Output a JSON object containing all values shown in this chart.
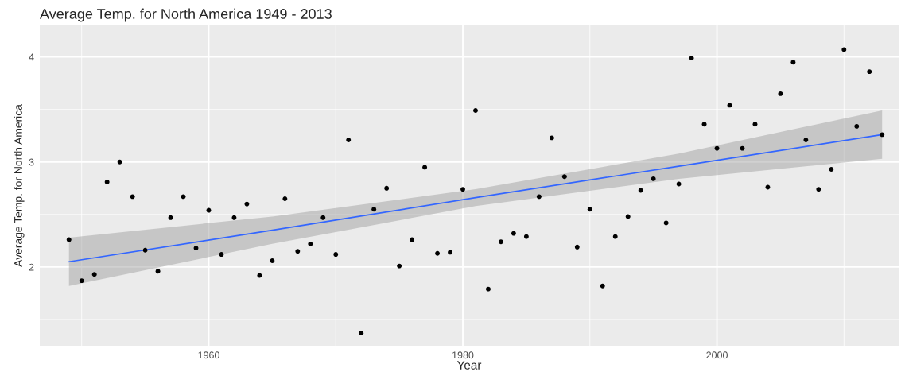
{
  "chart_data": {
    "type": "scatter",
    "title": "Average Temp. for North America 1949 - 2013",
    "xlabel": "Year",
    "ylabel": "Average Temp. for North America",
    "x": [
      1949,
      1950,
      1951,
      1952,
      1953,
      1954,
      1955,
      1956,
      1957,
      1958,
      1959,
      1960,
      1961,
      1962,
      1963,
      1964,
      1965,
      1966,
      1967,
      1968,
      1969,
      1970,
      1971,
      1972,
      1973,
      1974,
      1975,
      1976,
      1977,
      1978,
      1979,
      1980,
      1981,
      1982,
      1983,
      1984,
      1985,
      1986,
      1987,
      1988,
      1989,
      1990,
      1991,
      1992,
      1993,
      1994,
      1995,
      1996,
      1997,
      1998,
      1999,
      2000,
      2001,
      2002,
      2003,
      2004,
      2005,
      2006,
      2007,
      2008,
      2009,
      2010,
      2011,
      2012,
      2013
    ],
    "series": [
      {
        "marker": "circle",
        "color": "#000000",
        "values": [
          2.26,
          1.87,
          1.93,
          2.81,
          3.0,
          2.67,
          2.16,
          1.96,
          2.47,
          2.67,
          2.18,
          2.54,
          2.12,
          2.47,
          2.6,
          1.92,
          2.06,
          2.65,
          2.15,
          2.22,
          2.47,
          2.12,
          3.21,
          1.37,
          2.55,
          2.75,
          2.01,
          2.26,
          2.95,
          2.13,
          2.14,
          2.74,
          3.49,
          1.79,
          2.24,
          2.32,
          2.29,
          2.67,
          3.23,
          2.86,
          2.19,
          2.55,
          1.82,
          2.29,
          2.48,
          2.73,
          2.84,
          2.42,
          2.79,
          3.99,
          3.36,
          3.13,
          3.54,
          3.13,
          3.36,
          2.76,
          3.65,
          3.95,
          3.21,
          2.74,
          2.93,
          4.07,
          3.34,
          3.86,
          3.26
        ]
      },
      {
        "type": "line",
        "color": "#3366ff",
        "x": [
          1949,
          1965,
          1981,
          1997,
          2013
        ],
        "values": [
          2.05,
          2.35,
          2.66,
          2.96,
          3.26
        ],
        "lower": [
          1.82,
          2.22,
          2.58,
          2.84,
          3.03
        ],
        "upper": [
          2.28,
          2.48,
          2.74,
          3.08,
          3.49
        ]
      }
    ],
    "xlim": [
      1946.7,
      2014.3
    ],
    "xticks": [
      1960,
      1980,
      2000
    ],
    "ylim": [
      1.25,
      4.3
    ],
    "yticks": [
      2,
      3,
      4
    ],
    "grid": true,
    "legend": false
  }
}
